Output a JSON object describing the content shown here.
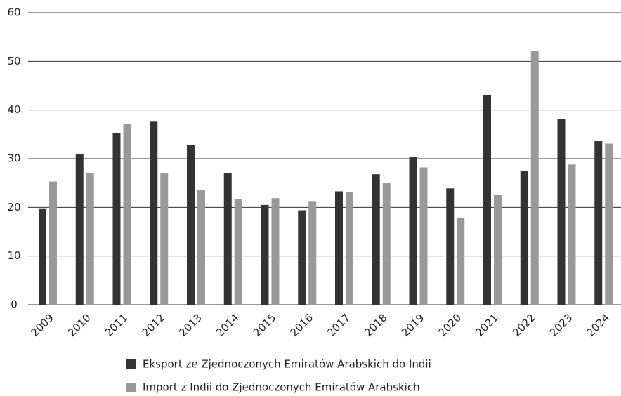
{
  "chart_data": {
    "type": "bar",
    "categories": [
      "2009",
      "2010",
      "2011",
      "2012",
      "2013",
      "2014",
      "2015",
      "2016",
      "2017",
      "2018",
      "2019",
      "2020",
      "2021",
      "2022",
      "2023",
      "2024"
    ],
    "series": [
      {
        "name": "Eksport ze Zjednoczonych Emiratów Arabskich do Indii",
        "color": "#333333",
        "values": [
          19.8,
          30.9,
          35.2,
          37.6,
          32.8,
          27.1,
          20.5,
          19.4,
          23.3,
          26.8,
          30.4,
          23.9,
          43.1,
          27.5,
          38.2,
          33.6
        ]
      },
      {
        "name": "Import z Indii do Zjednoczonych Emiratów Arabskich",
        "color": "#999999",
        "values": [
          25.3,
          27.1,
          37.2,
          27.0,
          23.5,
          21.7,
          21.9,
          21.3,
          23.2,
          25.0,
          28.2,
          17.9,
          22.5,
          52.2,
          28.8,
          33.1
        ]
      }
    ],
    "ylim": [
      0,
      60
    ],
    "yticks": [
      0,
      10,
      20,
      30,
      40,
      50,
      60
    ],
    "grid": true,
    "legend": "bottom"
  }
}
